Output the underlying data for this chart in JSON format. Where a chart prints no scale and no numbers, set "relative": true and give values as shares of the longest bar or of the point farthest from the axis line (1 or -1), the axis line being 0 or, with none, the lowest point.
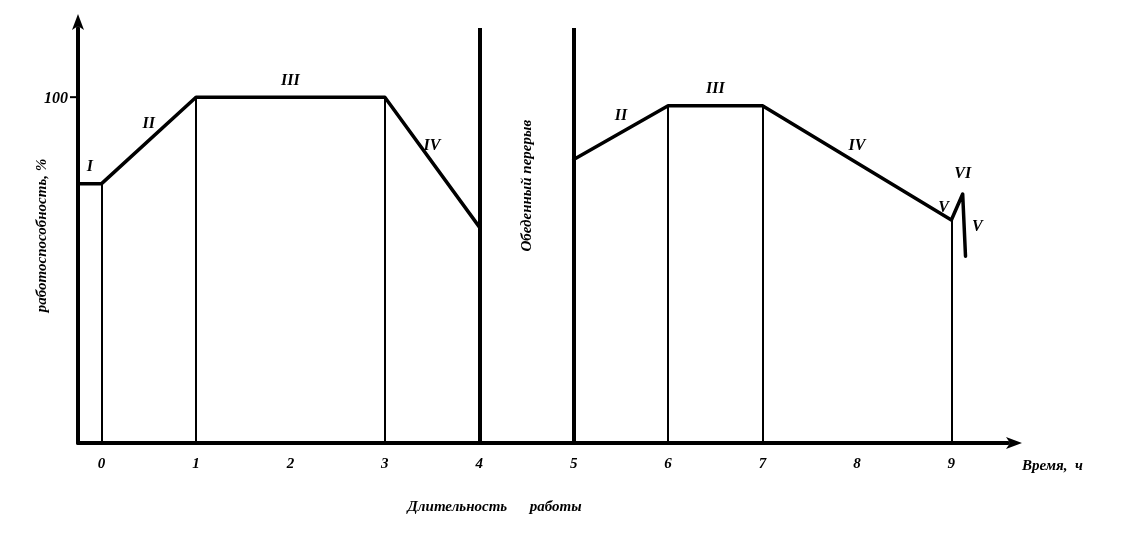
{
  "chart_data": {
    "type": "line",
    "relative": true,
    "xlabel": "Время,  ч",
    "ylabel": "работоспособность, %",
    "x": [
      -0.25,
      0,
      1,
      3,
      4,
      4.5,
      5,
      6,
      7,
      9,
      9.12,
      9.15
    ],
    "series": [
      {
        "color": "#000000",
        "values": [
          0.75,
          0.75,
          1,
          1,
          0.625,
          null,
          0.82,
          0.975,
          0.975,
          0.645,
          0.72,
          0.54
        ]
      }
    ],
    "xlim": [
      -0.25,
      9.6
    ],
    "xticks": [
      0,
      1,
      2,
      3,
      4,
      5,
      6,
      7,
      8,
      9
    ],
    "tick_labels": "x",
    "grid": false,
    "marker": "none",
    "line_style": "solid",
    "ref_lines": [
      {
        "axis": "x",
        "value": 0
      },
      {
        "axis": "x",
        "value": 1
      },
      {
        "axis": "x",
        "value": 3
      },
      {
        "axis": "x",
        "value": 4,
        "label": "Обеденный перерыв"
      },
      {
        "axis": "x",
        "value": 5
      },
      {
        "axis": "x",
        "value": 6
      },
      {
        "axis": "x",
        "value": 7
      },
      {
        "axis": "x",
        "value": 9
      }
    ],
    "annotations": [
      "100",
      {
        "text": "I",
        "x": -0.125,
        "y": 0.75
      },
      {
        "text": "II",
        "x": 0.5,
        "y": 0.875
      },
      {
        "text": "III",
        "x": 2,
        "y": 1
      },
      {
        "text": "IV",
        "x": 3.5,
        "y": 0.8125
      },
      {
        "text": "II",
        "x": 5.5,
        "y": 0.8975
      },
      {
        "text": "III",
        "x": 6.5,
        "y": 0.975
      },
      {
        "text": "IV",
        "x": 8,
        "y": 0.81
      },
      {
        "text": "V",
        "x": 9.06,
        "y": 0.6825
      },
      {
        "text": "VI",
        "x": 9.12,
        "y": 0.72
      },
      {
        "text": "V",
        "x": 9.135,
        "y": 0.63
      },
      "Длительность      работы"
    ]
  }
}
